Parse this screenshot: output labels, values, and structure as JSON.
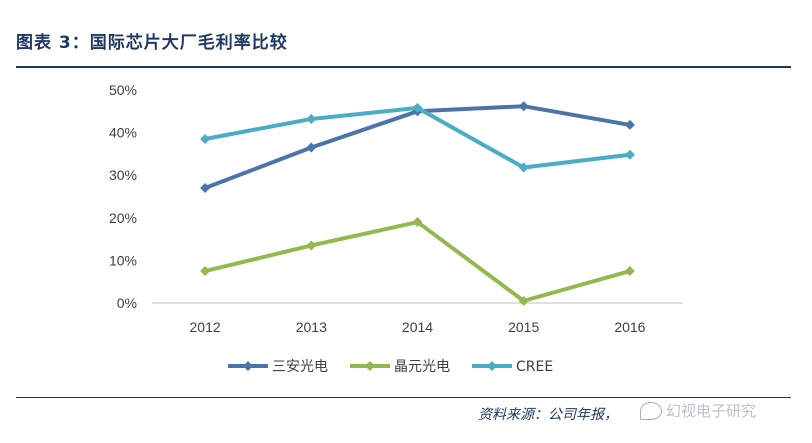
{
  "header": {
    "title": "图表 3：国际芯片大厂毛利率比较"
  },
  "footer": {
    "source": "资料来源：公司年报，",
    "watermark": "幻视电子研究"
  },
  "chart_data": {
    "type": "line",
    "title": "",
    "xlabel": "",
    "ylabel": "",
    "categories": [
      "2012",
      "2013",
      "2014",
      "2015",
      "2016"
    ],
    "ylim": [
      0,
      50
    ],
    "yticks": [
      "0%",
      "10%",
      "20%",
      "30%",
      "40%",
      "50%"
    ],
    "grid": false,
    "legend_position": "bottom",
    "series": [
      {
        "name": "三安光电",
        "color": "#4a74aa",
        "values": [
          27,
          36.5,
          45,
          46.2,
          41.8
        ]
      },
      {
        "name": "晶元光电",
        "color": "#91b94e",
        "values": [
          7.5,
          13.5,
          19,
          0.5,
          7.5
        ]
      },
      {
        "name": "CREE",
        "color": "#4bacc6",
        "values": [
          38.5,
          43.2,
          45.8,
          31.8,
          34.8
        ]
      }
    ]
  }
}
